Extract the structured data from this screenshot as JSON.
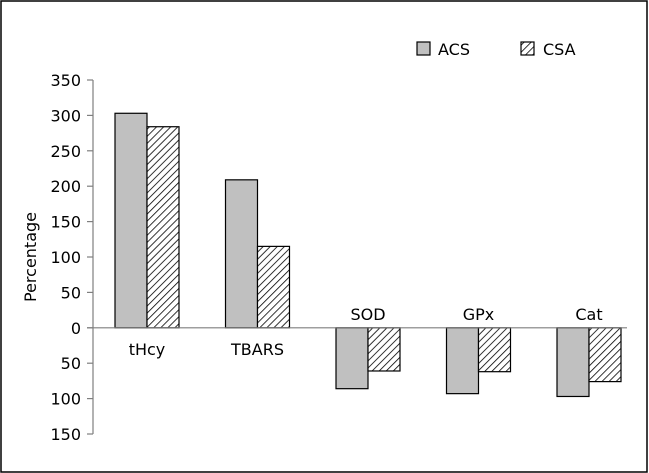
{
  "chart_data": {
    "type": "bar",
    "title": "",
    "xlabel": "",
    "ylabel": "Percentage",
    "ylim": [
      -150,
      350
    ],
    "yticks": [
      350,
      300,
      250,
      200,
      150,
      100,
      50,
      0,
      -50,
      -100,
      -150
    ],
    "ytick_labels": [
      "350",
      "300",
      "250",
      "200",
      "150",
      "100",
      "50",
      "0",
      "50",
      "100",
      "150"
    ],
    "categories": [
      "tHcy",
      "TBARS",
      "SOD",
      "GPx",
      "Cat"
    ],
    "series": [
      {
        "name": "ACS",
        "values": [
          303,
          209,
          -86,
          -93,
          -97
        ],
        "fill": "#c0c0c0",
        "pattern": "solid"
      },
      {
        "name": "CSA",
        "values": [
          284,
          115,
          -61,
          -62,
          -76
        ],
        "fill": "#ffffff",
        "pattern": "diagonal-hatch"
      }
    ],
    "legend": {
      "position": "top-right"
    },
    "grid": false,
    "colors": {
      "bar_fill": "#c0c0c0",
      "stroke": "#000000",
      "hatch": "#000000",
      "axis": "#7f7f7f",
      "border": "#000000"
    }
  }
}
